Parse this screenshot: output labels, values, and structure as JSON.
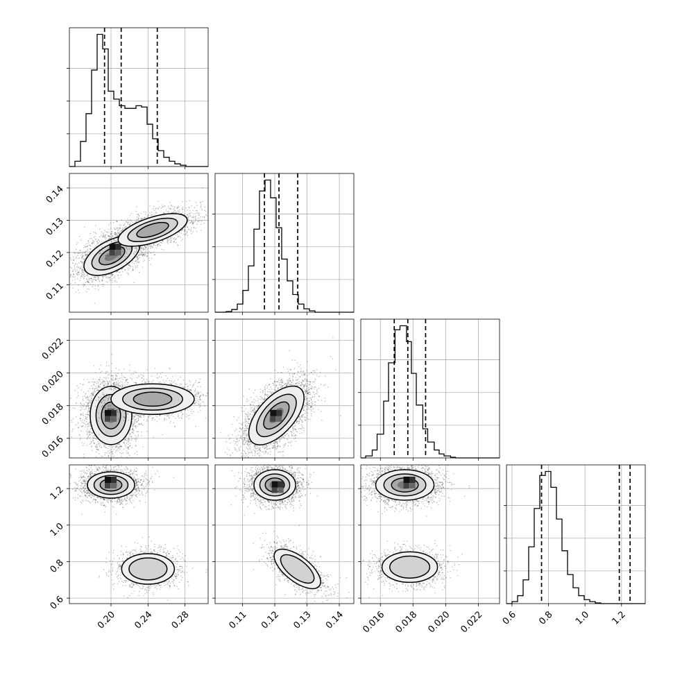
{
  "chart_data": {
    "type": "corner",
    "grid": true,
    "parameters": [
      {
        "ticks": [
          "0.20",
          "0.24",
          "0.28"
        ],
        "tick_values": [
          0.2,
          0.24,
          0.28
        ],
        "range": [
          0.155,
          0.305
        ],
        "quantiles": [
          0.193,
          0.211,
          0.25
        ],
        "hist_bins": [
          0.155,
          0.161,
          0.167,
          0.173,
          0.179,
          0.185,
          0.191,
          0.197,
          0.203,
          0.209,
          0.215,
          0.221,
          0.227,
          0.233,
          0.239,
          0.245,
          0.251,
          0.257,
          0.263,
          0.269,
          0.275,
          0.281,
          0.287,
          0.293,
          0.299,
          0.305
        ],
        "hist_counts": [
          0,
          0.4,
          1.9,
          4.0,
          7.3,
          10.0,
          8.9,
          5.7,
          5.1,
          4.6,
          4.4,
          4.4,
          4.6,
          4.5,
          3.2,
          2.1,
          1.2,
          0.7,
          0.4,
          0.2,
          0.1,
          0,
          0,
          0,
          0
        ]
      },
      {
        "ticks": [
          "0.11",
          "0.12",
          "0.13",
          "0.14"
        ],
        "tick_values": [
          0.11,
          0.12,
          0.13,
          0.14
        ],
        "range": [
          0.1015,
          0.1445
        ],
        "quantiles": [
          0.1168,
          0.1213,
          0.1271
        ],
        "hist_bins": [
          0.1015,
          0.10322,
          0.10494,
          0.10666,
          0.10838,
          0.1101,
          0.11182,
          0.11354,
          0.11526,
          0.11698,
          0.1187,
          0.12042,
          0.12214,
          0.12386,
          0.12558,
          0.1273,
          0.12902,
          0.13074,
          0.13246,
          0.13418,
          0.1359,
          0.13762,
          0.13934,
          0.14106,
          0.14278,
          0.1445
        ],
        "hist_counts": [
          0,
          0,
          0.05,
          0.2,
          0.6,
          1.6,
          3.4,
          6.1,
          8.9,
          9.7,
          8.4,
          6.2,
          3.9,
          2.3,
          1.3,
          0.6,
          0.25,
          0.1,
          0,
          0,
          0,
          0,
          0,
          0,
          0
        ]
      },
      {
        "ticks": [
          "0.016",
          "0.018",
          "0.020",
          "0.022"
        ],
        "tick_values": [
          0.016,
          0.018,
          0.02,
          0.022
        ],
        "range": [
          0.0148,
          0.0233
        ],
        "quantiles": [
          0.01685,
          0.01768,
          0.01877
        ],
        "hist_bins": [
          0.0148,
          0.0151,
          0.0155,
          0.0158,
          0.0162,
          0.0165,
          0.0169,
          0.0172,
          0.0176,
          0.0179,
          0.0182,
          0.0186,
          0.0189,
          0.0193,
          0.0196,
          0.0199,
          0.0203,
          0.0206,
          0.021,
          0.0213,
          0.0216,
          0.022,
          0.0223,
          0.0227,
          0.023,
          0.0233
        ],
        "hist_counts": [
          0,
          0.15,
          0.6,
          1.8,
          4.3,
          7.2,
          9.7,
          10.0,
          8.8,
          6.4,
          4.0,
          2.2,
          1.2,
          0.6,
          0.3,
          0.15,
          0.05,
          0,
          0,
          0,
          0,
          0,
          0,
          0,
          0
        ]
      },
      {
        "ticks": [
          "0.6",
          "0.8",
          "1.0",
          "1.2"
        ],
        "tick_values": [
          0.6,
          0.8,
          1.0,
          1.2
        ],
        "range": [
          0.57,
          1.33
        ],
        "quantiles": [
          0.762,
          1.188,
          1.247
        ],
        "hist_bins": [
          0.57,
          0.6004,
          0.6308,
          0.6612,
          0.6916,
          0.722,
          0.7524,
          0.7828,
          0.8132,
          0.8436,
          0.874,
          0.9044,
          0.9348,
          0.9652,
          0.9956,
          1.026,
          1.0564,
          1.0868,
          1.1172,
          1.1476,
          1.178,
          1.2084,
          1.2388,
          1.2692,
          1.2996,
          1.33
        ],
        "hist_counts": [
          0,
          0.15,
          0.6,
          1.8,
          4.3,
          7.2,
          9.7,
          10.0,
          8.8,
          6.4,
          4.0,
          2.2,
          1.2,
          0.6,
          0.3,
          0.15,
          0.05,
          0,
          0,
          0,
          0,
          0,
          0,
          0,
          0
        ]
      }
    ],
    "density_modes": [
      {
        "row": 1,
        "col": 0,
        "components": [
          {
            "center": [
              0.201,
              0.119
            ],
            "peak": [
              0.205,
              0.121
            ]
          },
          {
            "center": [
              0.245,
              0.127
            ]
          }
        ]
      },
      {
        "row": 2,
        "col": 0,
        "components": [
          {
            "center": [
              0.2,
              0.0174
            ],
            "peak": [
              0.2,
              0.0174
            ]
          },
          {
            "center": [
              0.245,
              0.0184
            ]
          }
        ]
      },
      {
        "row": 2,
        "col": 1,
        "components": [
          {
            "center": [
              0.1205,
              0.0174
            ],
            "peak": [
              0.1205,
              0.0174
            ]
          }
        ]
      },
      {
        "row": 3,
        "col": 0,
        "components": [
          {
            "center": [
              0.2,
              1.22
            ],
            "peak": [
              0.2,
              1.235
            ]
          },
          {
            "center": [
              0.24,
              0.76
            ]
          }
        ]
      },
      {
        "row": 3,
        "col": 1,
        "components": [
          {
            "center": [
              0.12,
              1.22
            ],
            "peak": [
              0.121,
              1.21
            ]
          },
          {
            "center": [
              0.127,
              0.76
            ]
          }
        ]
      },
      {
        "row": 3,
        "col": 2,
        "components": [
          {
            "center": [
              0.0175,
              1.22
            ],
            "peak": [
              0.0178,
              1.235
            ]
          },
          {
            "center": [
              0.0178,
              0.77
            ]
          }
        ]
      }
    ]
  }
}
